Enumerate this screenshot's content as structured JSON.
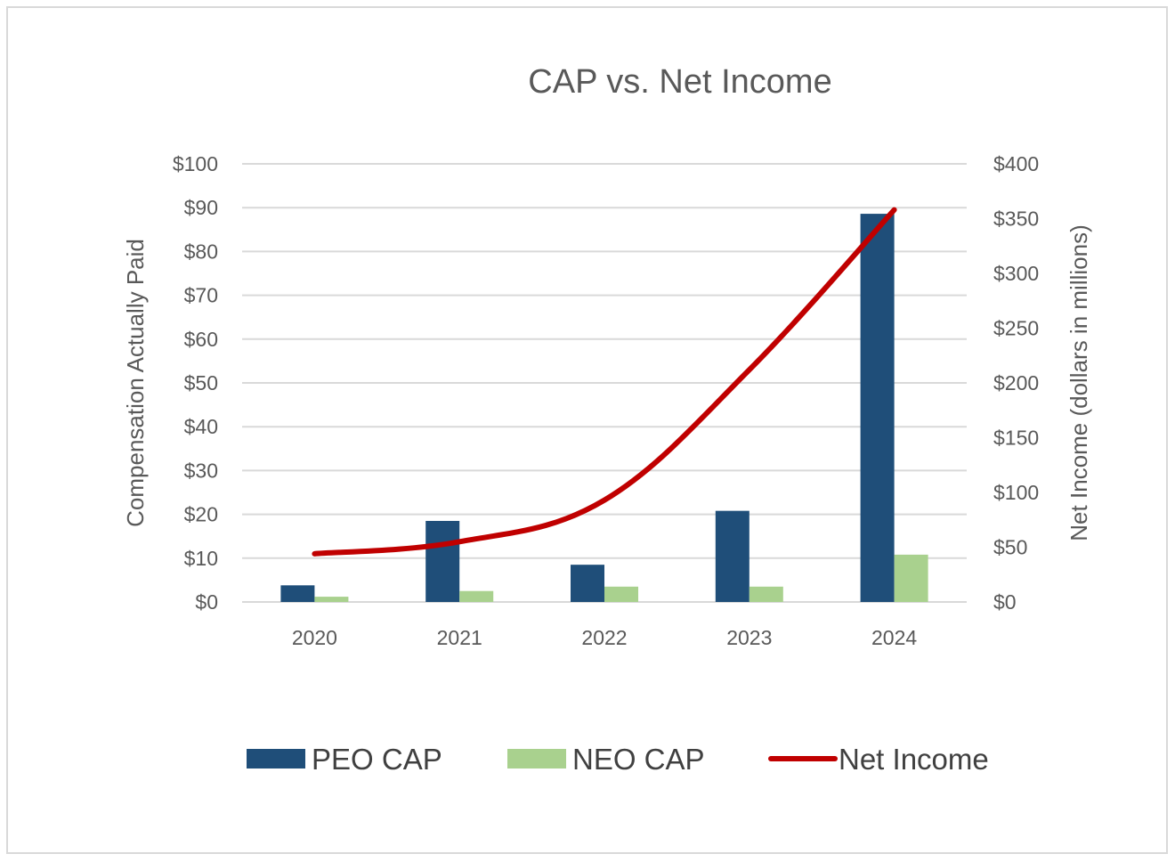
{
  "chart_data": {
    "type": "bar",
    "title": "CAP vs. Net Income",
    "categories": [
      "2020",
      "2021",
      "2022",
      "2023",
      "2024"
    ],
    "ylabel": "Compensation Actually Paid",
    "y2label": "Net Income (dollars in millions)",
    "ylim": [
      0,
      100
    ],
    "y2lim": [
      0,
      400
    ],
    "yticks": [
      "$0",
      "$10",
      "$20",
      "$30",
      "$40",
      "$50",
      "$60",
      "$70",
      "$80",
      "$90",
      "$100"
    ],
    "y2ticks": [
      "$0",
      "$50",
      "$100",
      "$150",
      "$200",
      "$250",
      "$300",
      "$350",
      "$400"
    ],
    "grid": true,
    "legend_position": "bottom",
    "series": [
      {
        "name": "PEO CAP",
        "type": "bar",
        "axis": "left",
        "color": "#1f4e79",
        "values": [
          3.8,
          18.5,
          8.5,
          20.8,
          88.6
        ]
      },
      {
        "name": "NEO CAP",
        "type": "bar",
        "axis": "left",
        "color": "#a9d18e",
        "values": [
          1.2,
          2.5,
          3.5,
          3.5,
          10.8
        ]
      },
      {
        "name": "Net Income",
        "type": "line",
        "axis": "right",
        "color": "#c00000",
        "values": [
          44,
          55,
          93,
          212,
          358
        ]
      }
    ]
  }
}
